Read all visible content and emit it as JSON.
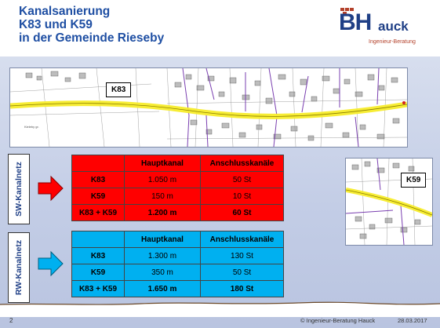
{
  "header": {
    "title_lines": [
      "Kanalsanierung",
      "K83 und K59",
      "in der Gemeinde Rieseby"
    ],
    "logo": {
      "mark": "BH",
      "word": "auck",
      "subtitle": "Ingenieur-Beratung"
    }
  },
  "maps": {
    "main_label": "K83",
    "small_label": "K59",
    "main_place_text": "Kieleby gr."
  },
  "sw": {
    "side_label": "SW-Kanalnetz",
    "headers": [
      "",
      "Hauptkanal",
      "Anschlusskanäle"
    ],
    "rows": [
      [
        "K83",
        "1.050 m",
        "50 St"
      ],
      [
        "K59",
        "150 m",
        "10 St"
      ],
      [
        "K83 + K59",
        "1.200 m",
        "60 St"
      ]
    ],
    "color": "#ff0000"
  },
  "rw": {
    "side_label": "RW-Kanalnetz",
    "headers": [
      "",
      "Hauptkanal",
      "Anschlusskanäle"
    ],
    "rows": [
      [
        "K83",
        "1.300 m",
        "130 St"
      ],
      [
        "K59",
        "350 m",
        "50 St"
      ],
      [
        "K83 + K59",
        "1.650 m",
        "180 St"
      ]
    ],
    "color": "#00b0f0"
  },
  "footer": {
    "page_number": "2",
    "copyright": "© Ingenieur-Beratung Hauck",
    "date": "28.03.2017"
  },
  "colors": {
    "title": "#1f4fa3",
    "route_highlight": "#f7ec2a",
    "logo_accent": "#b3402a"
  }
}
